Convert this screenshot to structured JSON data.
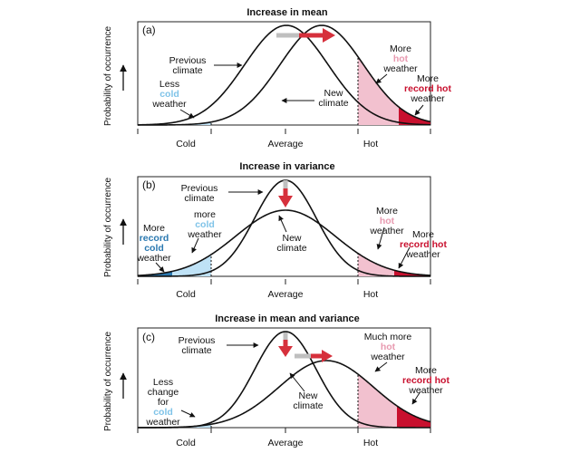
{
  "y_axis_label": "Probability of occurrence",
  "ticks": [
    "Cold",
    "Average",
    "Hot"
  ],
  "colors": {
    "cold": "#bfe2f6",
    "record_cold": "#2a78b0",
    "hot": "#f2c1cf",
    "record_hot": "#c8102e",
    "arrow": "#d6303c",
    "curve": "#111111"
  },
  "panels": [
    {
      "letter": "(a)",
      "title": "Increase in mean",
      "labels": {
        "previous_climate": [
          "Previous",
          "climate"
        ],
        "new_climate": [
          "New",
          "climate"
        ],
        "left": [
          [
            "Less",
            ""
          ],
          [
            "cold",
            "cold"
          ],
          [
            "weather",
            ""
          ]
        ],
        "right_mid": [
          [
            "More",
            ""
          ],
          [
            "hot",
            "hot"
          ],
          [
            "weather",
            ""
          ]
        ],
        "right_far": [
          [
            "More",
            ""
          ],
          [
            "record hot",
            "rhot"
          ],
          [
            "weather",
            ""
          ]
        ]
      }
    },
    {
      "letter": "(b)",
      "title": "Increase in variance",
      "labels": {
        "previous_climate": [
          "Previous",
          "climate"
        ],
        "new_climate": [
          "New",
          "climate"
        ],
        "left_far": [
          [
            "More",
            ""
          ],
          [
            "record",
            "rcold"
          ],
          [
            "cold",
            "rcold"
          ],
          [
            "weather",
            ""
          ]
        ],
        "left": [
          [
            "more",
            ""
          ],
          [
            "cold",
            "cold"
          ],
          [
            "weather",
            ""
          ]
        ],
        "right_mid": [
          [
            "More",
            ""
          ],
          [
            "hot",
            "hot"
          ],
          [
            "weather",
            ""
          ]
        ],
        "right_far": [
          [
            "More",
            ""
          ],
          [
            "record hot",
            "rhot"
          ],
          [
            "weather",
            ""
          ]
        ]
      }
    },
    {
      "letter": "(c)",
      "title": "Increase in mean and variance",
      "labels": {
        "previous_climate": [
          "Previous",
          "climate"
        ],
        "new_climate": [
          "New",
          "climate"
        ],
        "left": [
          [
            "Less",
            ""
          ],
          [
            "change",
            ""
          ],
          [
            "for",
            ""
          ],
          [
            "cold",
            "cold"
          ],
          [
            "weather",
            ""
          ]
        ],
        "right_mid": [
          [
            "Much more",
            ""
          ],
          [
            "hot",
            "hot"
          ],
          [
            "weather",
            ""
          ]
        ],
        "right_far": [
          [
            "More",
            ""
          ],
          [
            "record hot",
            "rhot"
          ],
          [
            "weather",
            ""
          ]
        ]
      }
    }
  ]
}
